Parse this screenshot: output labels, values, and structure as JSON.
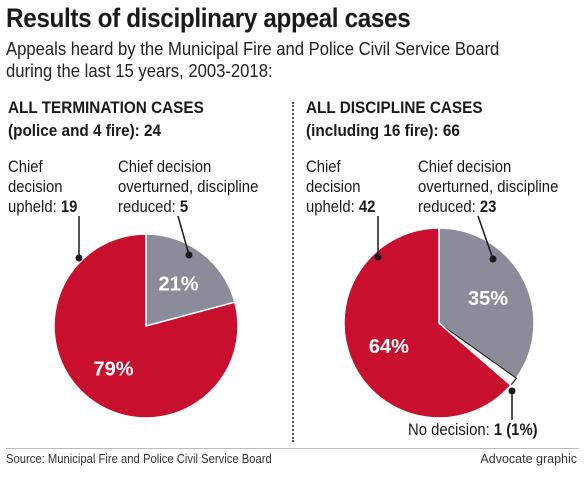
{
  "title": "Results of disciplinary appeal cases",
  "subtitle_line1": "Appeals heard by the Municipal Fire and Police Civil Service Board",
  "subtitle_line2": "during the last 15 years, 2003-2018:",
  "colors": {
    "upheld": "#c8102e",
    "overturned": "#8a8d99",
    "no_decision": "#ffffff",
    "outline": "#1a1a1a"
  },
  "left": {
    "heading_line1": "ALL TERMINATION CASES",
    "heading_line2_text": "(police and 4 fire): ",
    "heading_line2_total": "24",
    "upheld_line1": "Chief",
    "upheld_line2": "decision",
    "upheld_line3_text": "upheld: ",
    "upheld_count": "19",
    "overturned_line1": "Chief decision",
    "overturned_line2": "overturned, discipline",
    "overturned_line3_text": "reduced: ",
    "overturned_count": "5"
  },
  "right": {
    "heading_line1": "ALL DISCIPLINE CASES",
    "heading_line2_text": "(including 16 fire): ",
    "heading_line2_total": "66",
    "upheld_line1": "Chief",
    "upheld_line2": "decision",
    "upheld_line3_text": "upheld: ",
    "upheld_count": "42",
    "overturned_line1": "Chief decision",
    "overturned_line2": "overturned, discipline",
    "overturned_line3_text": "reduced: ",
    "overturned_count": "23",
    "no_decision_text": "No decision: ",
    "no_decision_value": "1 (1%)"
  },
  "source": "Source: Municipal Fire and Police Civil Service Board",
  "credit": "Advocate graphic",
  "chart_data": [
    {
      "type": "pie",
      "title": "ALL TERMINATION CASES (police and 4 fire): 24",
      "slices": [
        {
          "label": "Chief decision overturned, discipline reduced",
          "value": 5,
          "percent_label": "21%"
        },
        {
          "label": "Chief decision upheld",
          "value": 19,
          "percent_label": "79%"
        }
      ]
    },
    {
      "type": "pie",
      "title": "ALL DISCIPLINE CASES (including 16 fire): 66",
      "slices": [
        {
          "label": "Chief decision overturned, discipline reduced",
          "value": 23,
          "percent_label": "35%"
        },
        {
          "label": "No decision",
          "value": 1,
          "percent_label": "1%"
        },
        {
          "label": "Chief decision upheld",
          "value": 42,
          "percent_label": "64%"
        }
      ]
    }
  ]
}
